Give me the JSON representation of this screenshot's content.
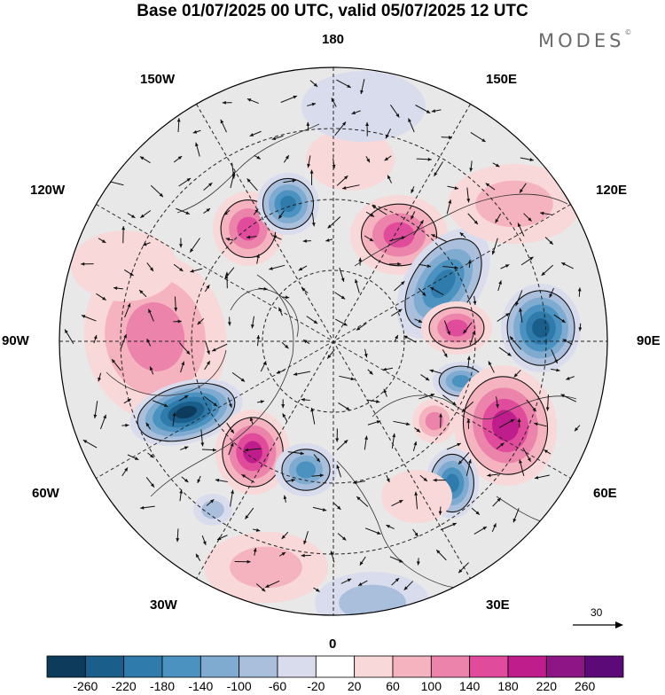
{
  "title": "Base 01/07/2025 00 UTC, valid 05/07/2025 12 UTC",
  "brand": "MODES",
  "brand_mark": "©",
  "map": {
    "projection": "north polar stereographic",
    "longitude_labels": {
      "top": "180",
      "bottom": "0",
      "left": "90W",
      "right": "90E",
      "upper_left_1": "150W",
      "upper_left_2": "120W",
      "lower_left_1": "60W",
      "lower_left_2": "30W",
      "upper_right_1": "150E",
      "upper_right_2": "120E",
      "lower_right_1": "60E",
      "lower_right_2": "30E"
    },
    "reference_vector": "30"
  },
  "colorbar": {
    "ticks": [
      "-260",
      "-220",
      "-180",
      "-140",
      "-100",
      "-60",
      "-20",
      "20",
      "60",
      "100",
      "140",
      "180",
      "220",
      "260"
    ],
    "colors": [
      "#0d3b5c",
      "#1a5f8c",
      "#2f7bab",
      "#4b92c0",
      "#7fabd0",
      "#a9bfdc",
      "#d9dcec",
      "#ffffff",
      "#f8d8d8",
      "#f4b3be",
      "#ec83aa",
      "#e04b9c",
      "#c01d8c",
      "#8e1585",
      "#5c0a78"
    ]
  },
  "colors": {
    "neutral_fill": "#e8e8e8",
    "negative_accent": "#2f7bab",
    "positive_accent": "#e04b9c"
  }
}
